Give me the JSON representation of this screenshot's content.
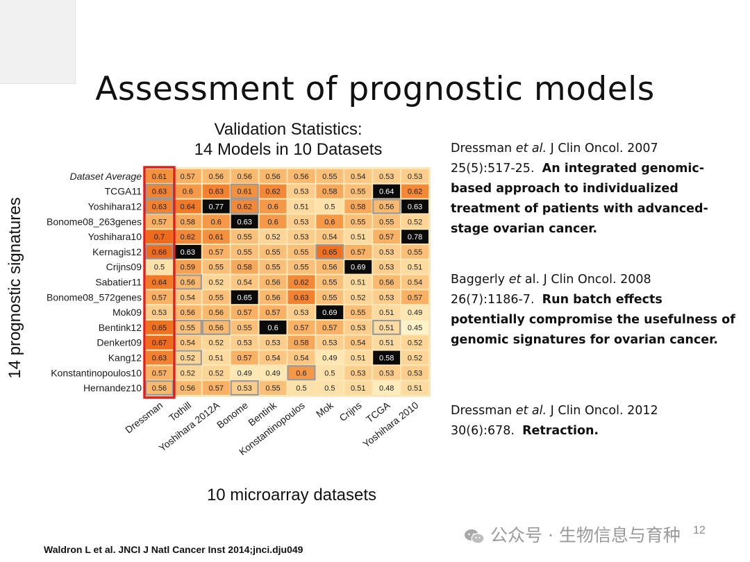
{
  "slide": {
    "title": "Assessment of prognostic models",
    "page_number": "12",
    "citation": "Waldron L et al. JNCI J Natl Cancer Inst 2014;jnci.dju049",
    "watermark": "公众号 · 生物信息与育种"
  },
  "references": [
    {
      "line1_pre": "Dressman ",
      "line1_em": "et al.",
      "line1_post": " J Clin Oncol. 2007",
      "line2": "25(5):517-25.",
      "bold": "An integrated genomic-based approach to individualized treatment of patients with advanced-stage ovarian cancer."
    },
    {
      "line1_pre": "Baggerly ",
      "line1_em": "et",
      "line1_post": " al. J Clin Oncol. 2008",
      "line2": "26(7):1186-7.",
      "bold": "Run batch effects potentially compromise the usefulness of genomic signatures for ovarian cancer."
    },
    {
      "line1_pre": "Dressman ",
      "line1_em": "et al.",
      "line1_post": " J Clin Oncol. 2012",
      "line2": "30(6):678.",
      "bold": "Retraction."
    }
  ],
  "chart_data": {
    "type": "heatmap",
    "title": [
      "Validation Statistics:",
      "14 Models in 10 Datasets"
    ],
    "xlabel": "10 microarray datasets",
    "ylabel": "14 prognostic signatures",
    "columns": [
      "Dressman",
      "Tothill",
      "Yoshihara 2012A",
      "Bonome",
      "Bentink",
      "Konstantinopoulos",
      "Mok",
      "Crijns",
      "TCGA",
      "Yoshihara 2010"
    ],
    "rows": [
      "Dataset Average",
      "TCGA11",
      "Yoshihara12",
      "Bonome08_263genes",
      "Yoshihara10",
      "Kernagis12",
      "Crijns09",
      "Sabatier11",
      "Bonome08_572genes",
      "Mok09",
      "Bentink12",
      "Denkert09",
      "Kang12",
      "Konstantinopoulos10",
      "Hernandez10"
    ],
    "values": [
      [
        0.61,
        0.57,
        0.56,
        0.56,
        0.56,
        0.56,
        0.55,
        0.54,
        0.53,
        0.53
      ],
      [
        0.63,
        0.6,
        0.63,
        0.61,
        0.62,
        0.53,
        0.58,
        0.55,
        0.64,
        0.62
      ],
      [
        0.63,
        0.64,
        0.77,
        0.62,
        0.6,
        0.51,
        0.5,
        0.58,
        0.56,
        0.63
      ],
      [
        0.57,
        0.58,
        0.6,
        0.63,
        0.6,
        0.53,
        0.6,
        0.55,
        0.55,
        0.52
      ],
      [
        0.7,
        0.62,
        0.61,
        0.55,
        0.52,
        0.53,
        0.54,
        0.51,
        0.57,
        0.78
      ],
      [
        0.66,
        0.63,
        0.57,
        0.55,
        0.55,
        0.55,
        0.65,
        0.57,
        0.53,
        0.55
      ],
      [
        0.5,
        0.59,
        0.55,
        0.58,
        0.55,
        0.55,
        0.56,
        0.69,
        0.53,
        0.51
      ],
      [
        0.64,
        0.56,
        0.52,
        0.54,
        0.56,
        0.62,
        0.55,
        0.51,
        0.56,
        0.54
      ],
      [
        0.57,
        0.54,
        0.55,
        0.65,
        0.56,
        0.63,
        0.55,
        0.52,
        0.53,
        0.57
      ],
      [
        0.53,
        0.56,
        0.56,
        0.57,
        0.57,
        0.53,
        0.69,
        0.55,
        0.51,
        0.49
      ],
      [
        0.65,
        0.55,
        0.56,
        0.55,
        0.6,
        0.57,
        0.57,
        0.53,
        0.51,
        0.45
      ],
      [
        0.67,
        0.54,
        0.52,
        0.53,
        0.53,
        0.58,
        0.53,
        0.54,
        0.51,
        0.52
      ],
      [
        0.63,
        0.52,
        0.51,
        0.57,
        0.54,
        0.54,
        0.49,
        0.51,
        0.58,
        0.52
      ],
      [
        0.57,
        0.52,
        0.52,
        0.49,
        0.49,
        0.6,
        0.5,
        0.53,
        0.53,
        0.53
      ],
      [
        0.56,
        0.56,
        0.57,
        0.53,
        0.55,
        0.5,
        0.5,
        0.51,
        0.48,
        0.51
      ]
    ],
    "black_cells": [
      [
        1,
        8
      ],
      [
        2,
        2
      ],
      [
        2,
        9
      ],
      [
        3,
        3
      ],
      [
        4,
        9
      ],
      [
        5,
        1
      ],
      [
        6,
        7
      ],
      [
        8,
        3
      ],
      [
        9,
        6
      ],
      [
        10,
        4
      ],
      [
        12,
        8
      ]
    ],
    "gray_outlined_cells": [
      [
        1,
        0
      ],
      [
        1,
        3
      ],
      [
        2,
        0
      ],
      [
        2,
        3
      ],
      [
        2,
        8
      ],
      [
        5,
        0
      ],
      [
        5,
        6
      ],
      [
        7,
        1
      ],
      [
        10,
        1
      ],
      [
        10,
        2
      ],
      [
        10,
        8
      ],
      [
        12,
        1
      ],
      [
        13,
        5
      ],
      [
        14,
        0
      ],
      [
        14,
        3
      ]
    ],
    "highlighted_column": "Dressman",
    "highlight_color": "#e0201f",
    "color_scale": [
      "#fdf2c8",
      "#fcd79a",
      "#f9b56a",
      "#f48f3c",
      "#ee6a1c"
    ]
  }
}
